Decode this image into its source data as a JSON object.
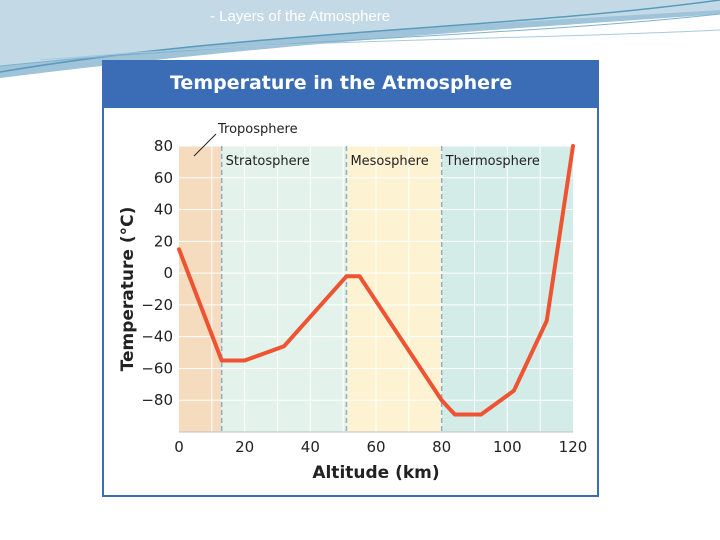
{
  "slide": {
    "title": "- Layers of the Atmosphere"
  },
  "colors": {
    "header_blue": "#3a6db5",
    "troposphere_fill": "#f5dcbf",
    "stratosphere_fill": "#e3f2ea",
    "mesosphere_fill": "#fdf3d3",
    "thermosphere_fill": "#d4ece7",
    "temperature_line": "#ee5432",
    "boundary_line": "#8aaed0"
  },
  "chart_data": {
    "type": "line",
    "title": "Temperature in the Atmosphere",
    "xlabel": "Altitude (km)",
    "ylabel": "Temperature (°C)",
    "xlim": [
      0,
      120
    ],
    "ylim": [
      -100,
      80
    ],
    "xticks": [
      "0",
      "20",
      "40",
      "60",
      "80",
      "100",
      "120"
    ],
    "yticks": [
      "80",
      "60",
      "40",
      "20",
      "0",
      "−20",
      "−40",
      "−60",
      "−80"
    ],
    "grid": true,
    "series": [
      {
        "x": [
          0,
          13,
          20,
          32,
          51,
          55,
          80,
          84,
          92,
          102,
          112,
          120
        ],
        "y": [
          15,
          -55,
          -55,
          -46,
          -2,
          -2,
          -80,
          -89,
          -89,
          -74,
          -30,
          80
        ]
      }
    ],
    "regions": [
      {
        "label": "Troposphere",
        "x_start": 0,
        "x_end": 13
      },
      {
        "label": "Stratosphere",
        "x_start": 13,
        "x_end": 51
      },
      {
        "label": "Mesosphere",
        "x_start": 51,
        "x_end": 80
      },
      {
        "label": "Thermosphere",
        "x_start": 80,
        "x_end": 120
      }
    ]
  }
}
